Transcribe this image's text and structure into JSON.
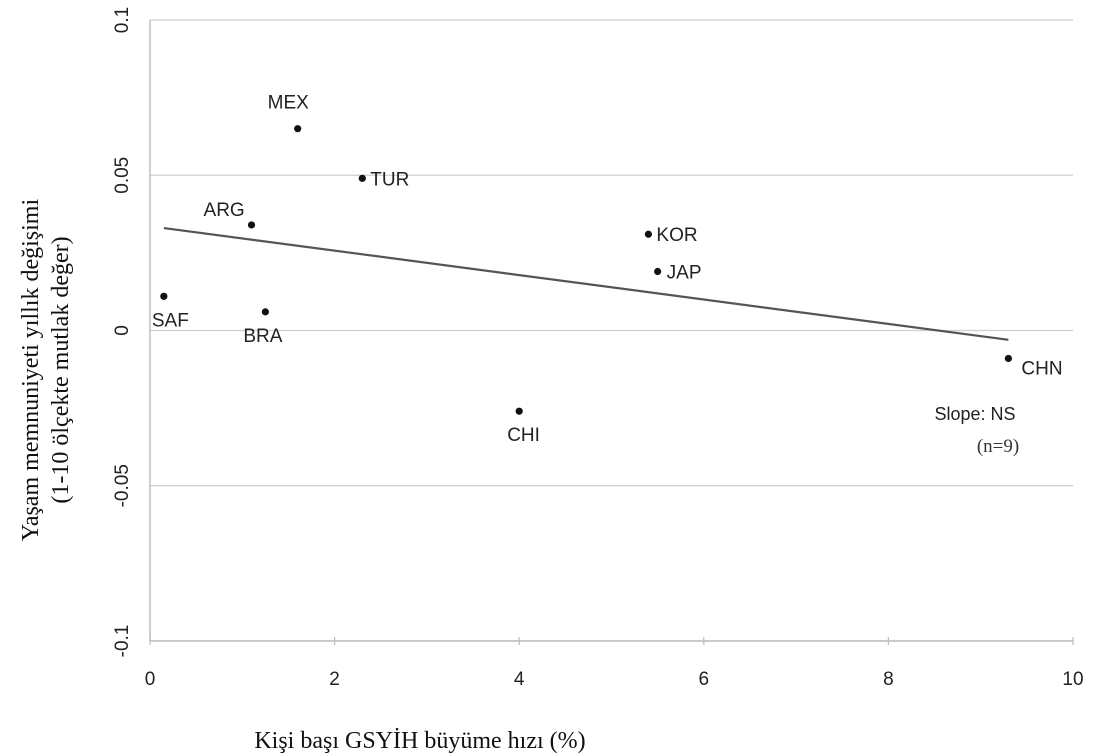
{
  "chart_data": {
    "type": "scatter",
    "xlabel": "Kişi başı GSYİH büyüme hızı (%)",
    "ylabel_line1": "Yaşam memnuniyeti yıllık değişimi",
    "ylabel_line2": "(1-10 ölçekte mutlak değer)",
    "xlim": [
      0,
      10
    ],
    "ylim": [
      -0.1,
      0.1
    ],
    "x_ticks": [
      0,
      2,
      4,
      6,
      8,
      10
    ],
    "x_tick_labels": [
      "0",
      "2",
      "4",
      "6",
      "8",
      "10"
    ],
    "y_ticks": [
      -0.1,
      -0.05,
      0,
      0.05,
      0.1
    ],
    "y_tick_labels": [
      "-0.1",
      "-0.05",
      "0",
      "0.05",
      "0.1"
    ],
    "grid": "horizontal",
    "points": [
      {
        "label": "MEX",
        "x": 1.6,
        "y": 0.065
      },
      {
        "label": "TUR",
        "x": 2.3,
        "y": 0.049
      },
      {
        "label": "ARG",
        "x": 1.1,
        "y": 0.034
      },
      {
        "label": "SAF",
        "x": 0.15,
        "y": 0.011
      },
      {
        "label": "BRA",
        "x": 1.25,
        "y": 0.006
      },
      {
        "label": "KOR",
        "x": 5.4,
        "y": 0.031
      },
      {
        "label": "JAP",
        "x": 5.5,
        "y": 0.019
      },
      {
        "label": "CHI",
        "x": 4.0,
        "y": -0.026
      },
      {
        "label": "CHN",
        "x": 9.3,
        "y": -0.009
      }
    ],
    "trendline": {
      "x": [
        0.15,
        9.3
      ],
      "y": [
        0.033,
        -0.003
      ]
    },
    "annotation": {
      "slope_text": "Slope: NS",
      "n_text": "(n=9)"
    }
  },
  "colors": {
    "point": "#111111",
    "trend": "#555555",
    "grid": "#cfcfcf",
    "axis": "#bdbdbd"
  }
}
